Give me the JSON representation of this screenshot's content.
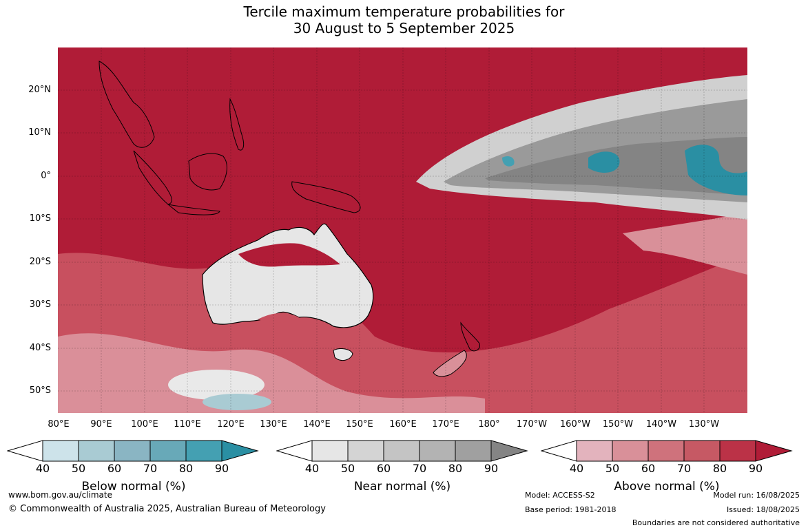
{
  "title": {
    "line1": "Tercile maximum temperature probabilities for",
    "line2": "30 August to 5 September 2025"
  },
  "lat_labels": [
    "20°N",
    "10°N",
    "0°",
    "10°S",
    "20°S",
    "30°S",
    "40°S",
    "50°S"
  ],
  "lon_labels": [
    "80°E",
    "90°E",
    "100°E",
    "110°E",
    "120°E",
    "130°E",
    "140°E",
    "150°E",
    "160°E",
    "170°E",
    "180°",
    "170°W",
    "160°W",
    "150°W",
    "140°W",
    "130°W"
  ],
  "colorbars": [
    {
      "title": "Below normal (%)",
      "ticks": [
        "40",
        "50",
        "60",
        "70",
        "80",
        "90"
      ],
      "colors": [
        "#ffffff",
        "#cde3ea",
        "#a9cbd3",
        "#8ab5c3",
        "#68a9b8",
        "#44a0b2",
        "#2a8fa3"
      ]
    },
    {
      "title": "Near normal (%)",
      "ticks": [
        "40",
        "50",
        "60",
        "70",
        "80",
        "90"
      ],
      "colors": [
        "#ffffff",
        "#e6e6e6",
        "#d4d4d4",
        "#c4c4c4",
        "#b3b3b3",
        "#a0a0a0",
        "#848484"
      ]
    },
    {
      "title": "Above normal (%)",
      "ticks": [
        "40",
        "50",
        "60",
        "70",
        "80",
        "90"
      ],
      "colors": [
        "#ffffff",
        "#e3b3bd",
        "#d99099",
        "#cf727c",
        "#c65964",
        "#bb3247",
        "#b01c37"
      ]
    }
  ],
  "footer": {
    "url": "www.bom.gov.au/climate",
    "copyright": "© Commonwealth of Australia 2025, Australian Bureau of Meteorology",
    "model": "Model: ACCESS-S2",
    "base_period": "Base period: 1981-2018",
    "model_run": "Model run: 16/08/2025",
    "issued": "Issued: 18/08/2025",
    "disclaimer": "Boundaries are not considered authoritative"
  }
}
